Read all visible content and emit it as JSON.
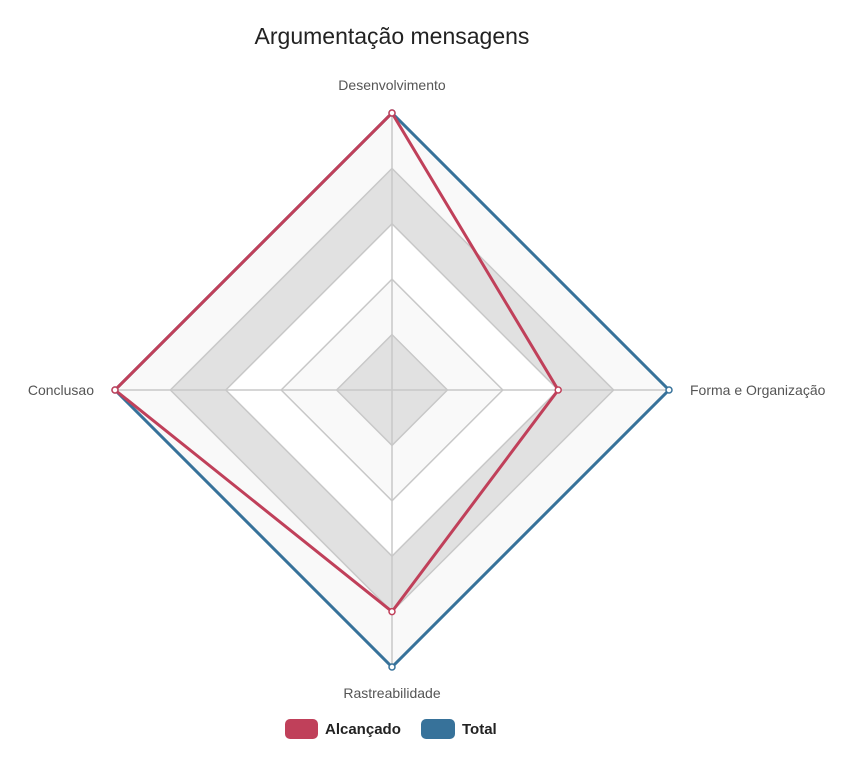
{
  "chart_data": {
    "type": "radar",
    "title": "Argumentação mensagens",
    "axes": [
      "Desenvolvimento",
      "Forma e Organização",
      "Rastreabilidade",
      "Conclusao"
    ],
    "max": 100,
    "rings": 5,
    "series": [
      {
        "name": "Alcançado",
        "values": [
          100,
          60,
          80,
          100
        ],
        "color": "#c0405a"
      },
      {
        "name": "Total",
        "values": [
          100,
          100,
          100,
          100
        ],
        "color": "#37729a"
      }
    ],
    "band_colors": [
      "#ffffff",
      "#e1e1e1",
      "#f9f9f9"
    ],
    "grid_color": "#c8c8c8",
    "legend_position": "bottom"
  }
}
